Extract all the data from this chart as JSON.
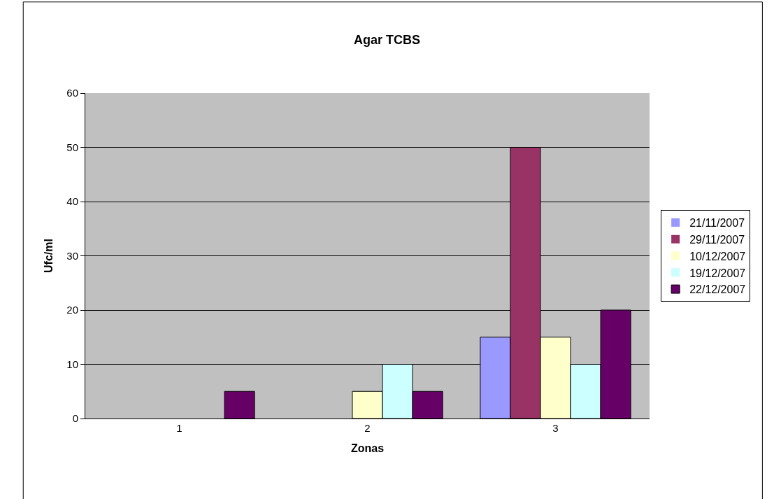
{
  "chart_data": {
    "type": "bar",
    "title": "Agar TCBS",
    "xlabel": "Zonas",
    "ylabel": "Ufc/ml",
    "categories": [
      "1",
      "2",
      "3"
    ],
    "series": [
      {
        "name": "21/11/2007",
        "color": "#9999ff",
        "values": [
          0,
          0,
          15
        ]
      },
      {
        "name": "29/11/2007",
        "color": "#993366",
        "values": [
          0,
          0,
          50
        ]
      },
      {
        "name": "10/12/2007",
        "color": "#ffffcc",
        "values": [
          0,
          5,
          15
        ]
      },
      {
        "name": "19/12/2007",
        "color": "#ccffff",
        "values": [
          0,
          10,
          10
        ]
      },
      {
        "name": "22/12/2007",
        "color": "#660066",
        "values": [
          5,
          5,
          20
        ]
      }
    ],
    "ylim": [
      0,
      60
    ],
    "yticks": [
      0,
      10,
      20,
      30,
      40,
      50,
      60
    ],
    "grid": "y",
    "legend": "right"
  }
}
